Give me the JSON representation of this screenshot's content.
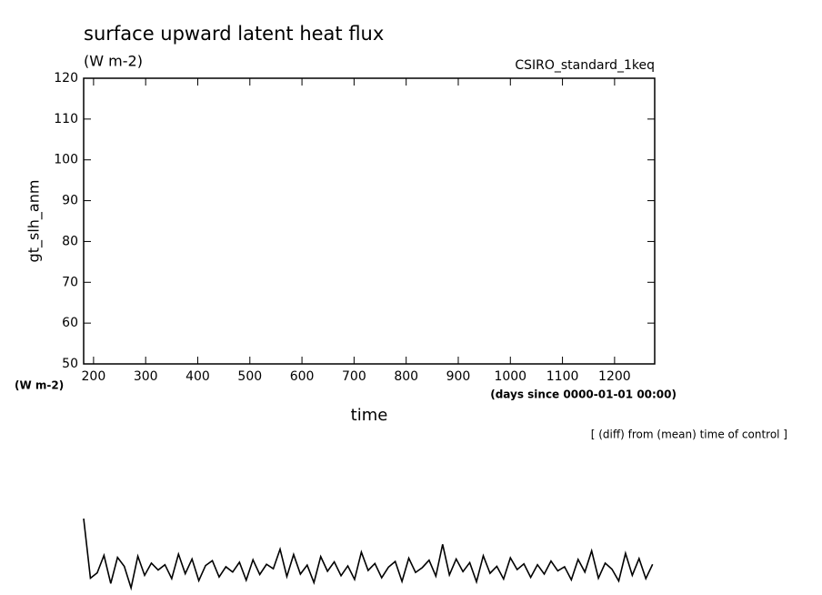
{
  "chart_data": {
    "type": "line",
    "title": "surface upward latent heat flux",
    "subtitle": "(W m-2)",
    "experiment": "CSIRO_standard_1keq",
    "y_label": "gt_slh_anm",
    "y_units": "(W m-2)",
    "x_label": "time",
    "x_units": "(days since 0000-01-01 00:00)",
    "note": "[ (diff) from (mean) time of control ]",
    "xlim": [
      181,
      1277
    ],
    "ylim": [
      50,
      120
    ],
    "xticks": [
      200,
      300,
      400,
      500,
      600,
      700,
      800,
      900,
      1000,
      1100,
      1200
    ],
    "yticks": [
      50,
      60,
      70,
      80,
      90,
      100,
      110,
      120
    ],
    "x": [
      181,
      194,
      207,
      220,
      233,
      246,
      259,
      272,
      285,
      298,
      311,
      324,
      337,
      350,
      363,
      376,
      389,
      402,
      415,
      428,
      441,
      454,
      467,
      480,
      493,
      506,
      519,
      532,
      545,
      558,
      571,
      584,
      597,
      610,
      623,
      636,
      649,
      662,
      675,
      688,
      701,
      714,
      727,
      740,
      753,
      766,
      779,
      792,
      805,
      818,
      831,
      844,
      857,
      870,
      883,
      896,
      909,
      922,
      935,
      948,
      961,
      974,
      987,
      1000,
      1013,
      1026,
      1039,
      1052,
      1065,
      1078,
      1091,
      1104,
      1117,
      1130,
      1143,
      1156,
      1169,
      1182,
      1195,
      1208,
      1221,
      1234,
      1247,
      1260,
      1273
    ],
    "series": [
      {
        "color": "#000000",
        "values": [
          12.1,
          -2.5,
          -1.2,
          3.1,
          -3.8,
          2.6,
          0.4,
          -4.9,
          2.9,
          -1.8,
          1.2,
          -0.5,
          0.8,
          -2.6,
          3.4,
          -1.4,
          2.2,
          -3.1,
          0.6,
          1.8,
          -2.2,
          0.3,
          -1.0,
          1.4,
          -3.0,
          2.0,
          -1.6,
          0.9,
          -0.2,
          4.6,
          -2.1,
          3.3,
          -1.5,
          0.7,
          -3.6,
          2.8,
          -0.8,
          1.5,
          -1.9,
          0.5,
          -2.8,
          3.9,
          -0.6,
          1.1,
          -2.4,
          0.2,
          1.6,
          -3.3,
          2.4,
          -1.1,
          0.1,
          1.9,
          -2.0,
          5.8,
          -1.7,
          2.2,
          -0.9,
          1.3,
          -3.4,
          3.0,
          -1.3,
          0.4,
          -2.7,
          2.5,
          -0.4,
          1.0,
          -2.3,
          0.8,
          -1.5,
          1.7,
          -0.7,
          0.3,
          -2.9,
          2.1,
          -1.0,
          4.2,
          -2.5,
          1.2,
          -0.3,
          -3.2,
          3.6,
          -1.8,
          2.3,
          -2.6,
          0.9
        ]
      }
    ]
  }
}
